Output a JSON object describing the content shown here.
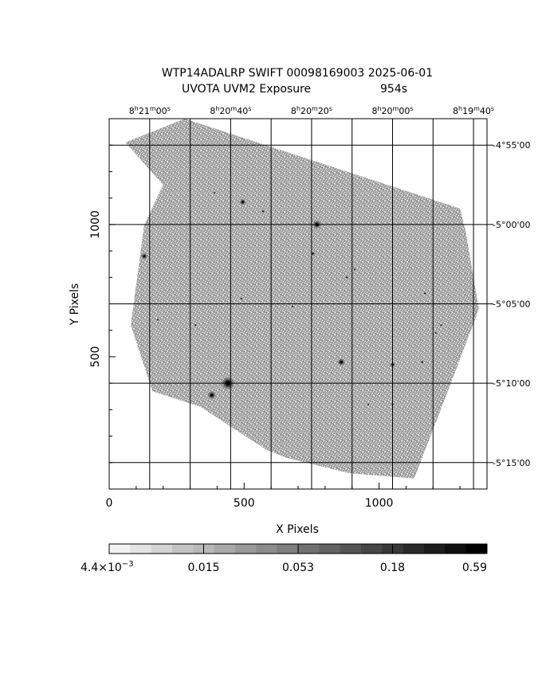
{
  "chart_data": {
    "type": "heatmap",
    "title_line1": "WTP14ADALRP SWIFT 00098169003 2025-06-01",
    "title_line2_left": "UVOTA UVM2 Exposure",
    "title_line2_right": "954s",
    "xlabel": "X Pixels",
    "ylabel": "Y Pixels",
    "xlim": [
      0,
      1400
    ],
    "ylim": [
      0,
      1400
    ],
    "x_ticks": [
      {
        "value": 0,
        "label": "0"
      },
      {
        "value": 500,
        "label": "500"
      },
      {
        "value": 1000,
        "label": "1000"
      }
    ],
    "y_ticks": [
      {
        "value": 500,
        "label": "500"
      },
      {
        "value": 1000,
        "label": "1000"
      }
    ],
    "ra_ticks": [
      {
        "x": 150,
        "h": "8",
        "m": "21",
        "s": "00"
      },
      {
        "x": 450,
        "h": "8",
        "m": "20",
        "s": "40"
      },
      {
        "x": 750,
        "h": "8",
        "m": "20",
        "s": "20"
      },
      {
        "x": 1050,
        "h": "8",
        "m": "20",
        "s": "00"
      },
      {
        "x": 1350,
        "h": "8",
        "m": "19",
        "s": "40"
      }
    ],
    "dec_ticks": [
      {
        "y": 1300,
        "label": "-4°55'00"
      },
      {
        "y": 1000,
        "label": "-5°00'00"
      },
      {
        "y": 700,
        "label": "-5°05'00"
      },
      {
        "y": 400,
        "label": "-5°10'00"
      },
      {
        "y": 100,
        "label": "-5°15'00"
      }
    ],
    "colorbar": {
      "labels": [
        "4.4×10",
        "0.015",
        "0.053",
        "0.18",
        "0.59"
      ],
      "exponent": "−3",
      "colors": [
        "#f2f2f2",
        "#e4e4e4",
        "#d4d4d4",
        "#c4c4c4",
        "#b8b8b8",
        "#a8a8a8",
        "#9a9a9a",
        "#8c8c8c",
        "#7e7e7e",
        "#707070",
        "#626262",
        "#545454",
        "#464646",
        "#383838",
        "#2a2a2a",
        "#1c1c1c",
        "#0e0e0e",
        "#000000"
      ]
    },
    "exposure_polygon": [
      [
        60,
        1310
      ],
      [
        280,
        1400
      ],
      [
        1300,
        1060
      ],
      [
        1320,
        980
      ],
      [
        1370,
        680
      ],
      [
        1240,
        330
      ],
      [
        1130,
        40
      ],
      [
        890,
        60
      ],
      [
        650,
        120
      ],
      [
        580,
        150
      ],
      [
        340,
        310
      ],
      [
        160,
        370
      ],
      [
        80,
        620
      ],
      [
        130,
        1000
      ],
      [
        200,
        1150
      ]
    ],
    "sources": [
      {
        "x": 440,
        "y": 400,
        "r": 12,
        "intensity": 1.0
      },
      {
        "x": 380,
        "y": 355,
        "r": 8,
        "intensity": 0.75
      },
      {
        "x": 495,
        "y": 1085,
        "r": 6,
        "intensity": 0.8
      },
      {
        "x": 770,
        "y": 1000,
        "r": 8,
        "intensity": 0.85
      },
      {
        "x": 860,
        "y": 480,
        "r": 7,
        "intensity": 0.85
      },
      {
        "x": 130,
        "y": 880,
        "r": 6,
        "intensity": 0.8
      },
      {
        "x": 1050,
        "y": 470,
        "r": 5,
        "intensity": 0.75
      },
      {
        "x": 755,
        "y": 890,
        "r": 4,
        "intensity": 0.6
      },
      {
        "x": 570,
        "y": 1050,
        "r": 3,
        "intensity": 0.6
      },
      {
        "x": 1160,
        "y": 480,
        "r": 3,
        "intensity": 0.5
      },
      {
        "x": 880,
        "y": 800,
        "r": 3,
        "intensity": 0.5
      },
      {
        "x": 1050,
        "y": 320,
        "r": 3,
        "intensity": 0.5
      },
      {
        "x": 180,
        "y": 640,
        "r": 2,
        "intensity": 0.4
      },
      {
        "x": 1170,
        "y": 740,
        "r": 2,
        "intensity": 0.4
      },
      {
        "x": 320,
        "y": 620,
        "r": 2,
        "intensity": 0.4
      },
      {
        "x": 910,
        "y": 830,
        "r": 2,
        "intensity": 0.4
      },
      {
        "x": 680,
        "y": 690,
        "r": 2,
        "intensity": 0.4
      },
      {
        "x": 960,
        "y": 320,
        "r": 2,
        "intensity": 0.4
      },
      {
        "x": 1230,
        "y": 620,
        "r": 2,
        "intensity": 0.4
      },
      {
        "x": 390,
        "y": 1120,
        "r": 2,
        "intensity": 0.35
      },
      {
        "x": 490,
        "y": 720,
        "r": 2,
        "intensity": 0.35
      },
      {
        "x": 1210,
        "y": 590,
        "r": 2,
        "intensity": 0.35
      }
    ]
  }
}
